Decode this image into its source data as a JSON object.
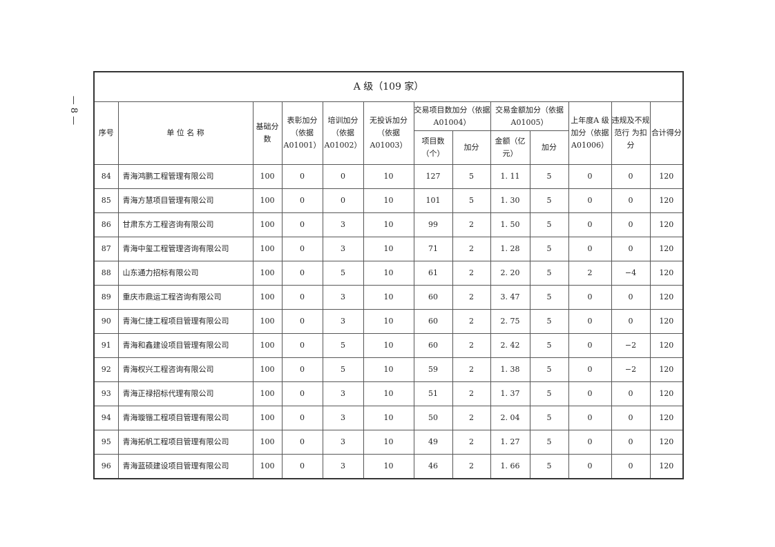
{
  "page_number": "— 8 —",
  "title": "A 级（109 家）",
  "headers": {
    "seq": "序号",
    "name": "单 位 名 称",
    "base": "基础分数",
    "commend": "表彰加分（依据A01001）",
    "training": "培训加分（依据A01002）",
    "nocomplaint": "无投诉加分（依据A01003）",
    "projcount_group": "交易项目数加分（依据 A01004）",
    "projcount": "项目数（个）",
    "projcount_score": "加分",
    "amount_group": "交易金额加分（依据 A01005）",
    "amount": "金额（亿元）",
    "amount_score": "加分",
    "lastyear": "上年度A 级加分（依据A01006）",
    "violation": "违规及不规范行 为扣 分",
    "total": "合计得分"
  },
  "rows": [
    [
      "84",
      "青海鸿鹏工程管理有限公司",
      "100",
      "0",
      "0",
      "10",
      "127",
      "5",
      "1. 11",
      "5",
      "0",
      "0",
      "120"
    ],
    [
      "85",
      "青海方慧项目管理有限公司",
      "100",
      "0",
      "0",
      "10",
      "101",
      "5",
      "1. 30",
      "5",
      "0",
      "0",
      "120"
    ],
    [
      "86",
      "甘肃东方工程咨询有限公司",
      "100",
      "0",
      "3",
      "10",
      "99",
      "2",
      "1. 50",
      "5",
      "0",
      "0",
      "120"
    ],
    [
      "87",
      "青海中玺工程管理咨询有限公司",
      "100",
      "0",
      "3",
      "10",
      "71",
      "2",
      "1. 28",
      "5",
      "0",
      "0",
      "120"
    ],
    [
      "88",
      "山东通力招标有限公司",
      "100",
      "0",
      "5",
      "10",
      "61",
      "2",
      "2. 20",
      "5",
      "2",
      "−4",
      "120"
    ],
    [
      "89",
      "重庆市鼎运工程咨询有限公司",
      "100",
      "0",
      "3",
      "10",
      "60",
      "2",
      "3. 47",
      "5",
      "0",
      "0",
      "120"
    ],
    [
      "90",
      "青海仁捷工程项目管理有限公司",
      "100",
      "0",
      "3",
      "10",
      "60",
      "2",
      "2. 75",
      "5",
      "0",
      "0",
      "120"
    ],
    [
      "91",
      "青海和鑫建设项目管理有限公司",
      "100",
      "0",
      "5",
      "10",
      "60",
      "2",
      "2. 42",
      "5",
      "0",
      "−2",
      "120"
    ],
    [
      "92",
      "青海权兴工程咨询有限公司",
      "100",
      "0",
      "5",
      "10",
      "59",
      "2",
      "1. 38",
      "5",
      "0",
      "−2",
      "120"
    ],
    [
      "93",
      "青海正禄招标代理有限公司",
      "100",
      "0",
      "3",
      "10",
      "51",
      "2",
      "1. 37",
      "5",
      "0",
      "0",
      "120"
    ],
    [
      "94",
      "青海璇锴工程项目管理有限公司",
      "100",
      "0",
      "3",
      "10",
      "50",
      "2",
      "2. 04",
      "5",
      "0",
      "0",
      "120"
    ],
    [
      "95",
      "青海拓帆工程项目管理有限公司",
      "100",
      "0",
      "3",
      "10",
      "49",
      "2",
      "1. 27",
      "5",
      "0",
      "0",
      "120"
    ],
    [
      "96",
      "青海蓝硕建设项目管理有限公司",
      "100",
      "0",
      "3",
      "10",
      "46",
      "2",
      "1. 66",
      "5",
      "0",
      "0",
      "120"
    ]
  ]
}
